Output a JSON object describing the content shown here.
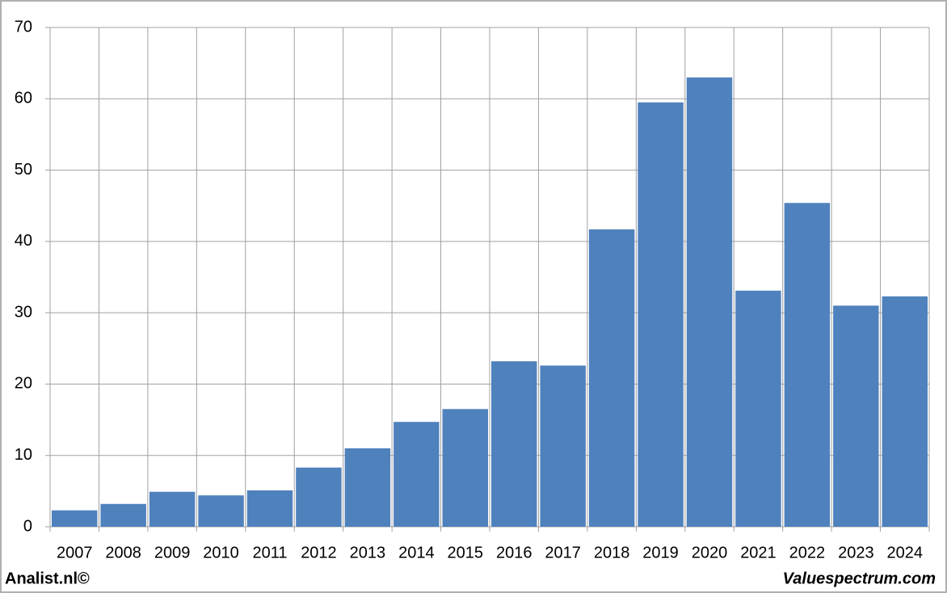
{
  "chart_data": {
    "type": "bar",
    "categories": [
      "2007",
      "2008",
      "2009",
      "2010",
      "2011",
      "2012",
      "2013",
      "2014",
      "2015",
      "2016",
      "2017",
      "2018",
      "2019",
      "2020",
      "2021",
      "2022",
      "2023",
      "2024"
    ],
    "values": [
      2.3,
      3.2,
      4.9,
      4.4,
      5.1,
      8.3,
      11.0,
      14.7,
      16.5,
      23.2,
      22.6,
      41.7,
      59.5,
      63.0,
      33.1,
      45.4,
      31.0,
      32.3
    ],
    "color": "#4f81bd",
    "ylim": [
      0,
      70
    ],
    "yticks": [
      0,
      10,
      20,
      30,
      40,
      50,
      60,
      70
    ],
    "grid": true,
    "annotations": [
      "Analist.nl©",
      "Valuespectrum.com"
    ]
  }
}
